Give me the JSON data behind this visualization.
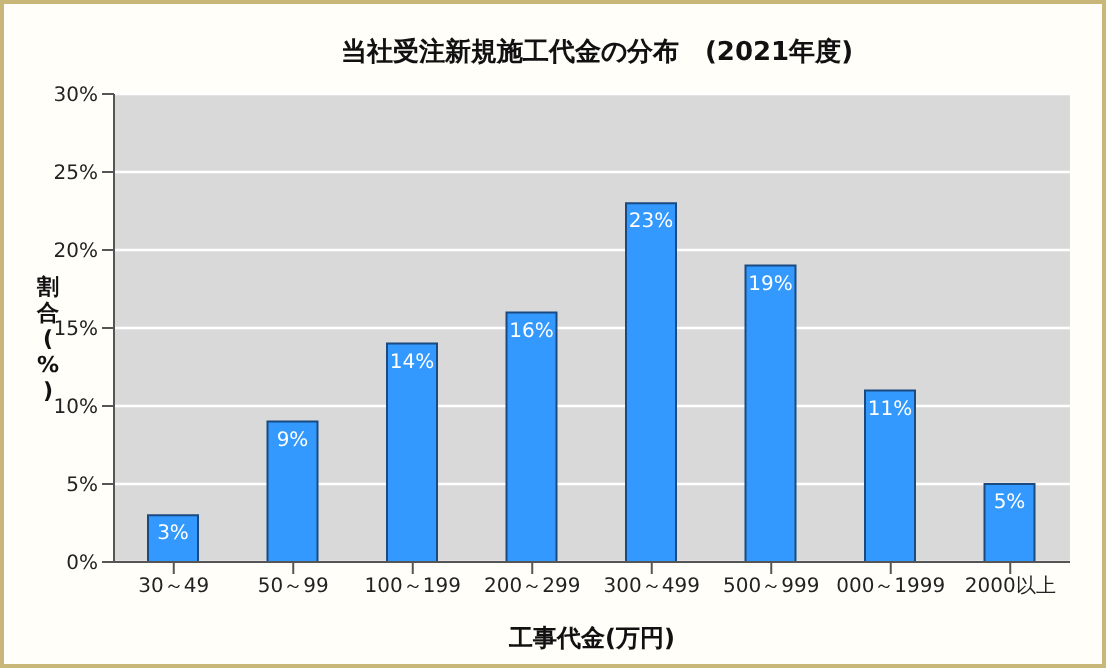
{
  "chart_data": {
    "type": "bar",
    "title": "当社受注新規施工代金の分布　(2021年度)",
    "xlabel": "工事代金(万円)",
    "ylabel": "割合(%)",
    "categories": [
      "30～49",
      "50～99",
      "100～199",
      "200～299",
      "300～499",
      "500～999",
      "000～1999",
      "2000以上"
    ],
    "values": [
      3,
      9,
      14,
      16,
      23,
      19,
      11,
      5
    ],
    "value_labels": [
      "3%",
      "9%",
      "14%",
      "16%",
      "23%",
      "19%",
      "11%",
      "5%"
    ],
    "color": "#3399ff",
    "ylim": [
      0,
      30
    ],
    "yticks": [
      {
        "value": 0,
        "label": "0%"
      },
      {
        "value": 5,
        "label": "5%"
      },
      {
        "value": 10,
        "label": "10%"
      },
      {
        "value": 15,
        "label": "15%"
      },
      {
        "value": 20,
        "label": "20%"
      },
      {
        "value": 25,
        "label": "25%"
      },
      {
        "value": 30,
        "label": "30%"
      }
    ],
    "grid": "y"
  }
}
